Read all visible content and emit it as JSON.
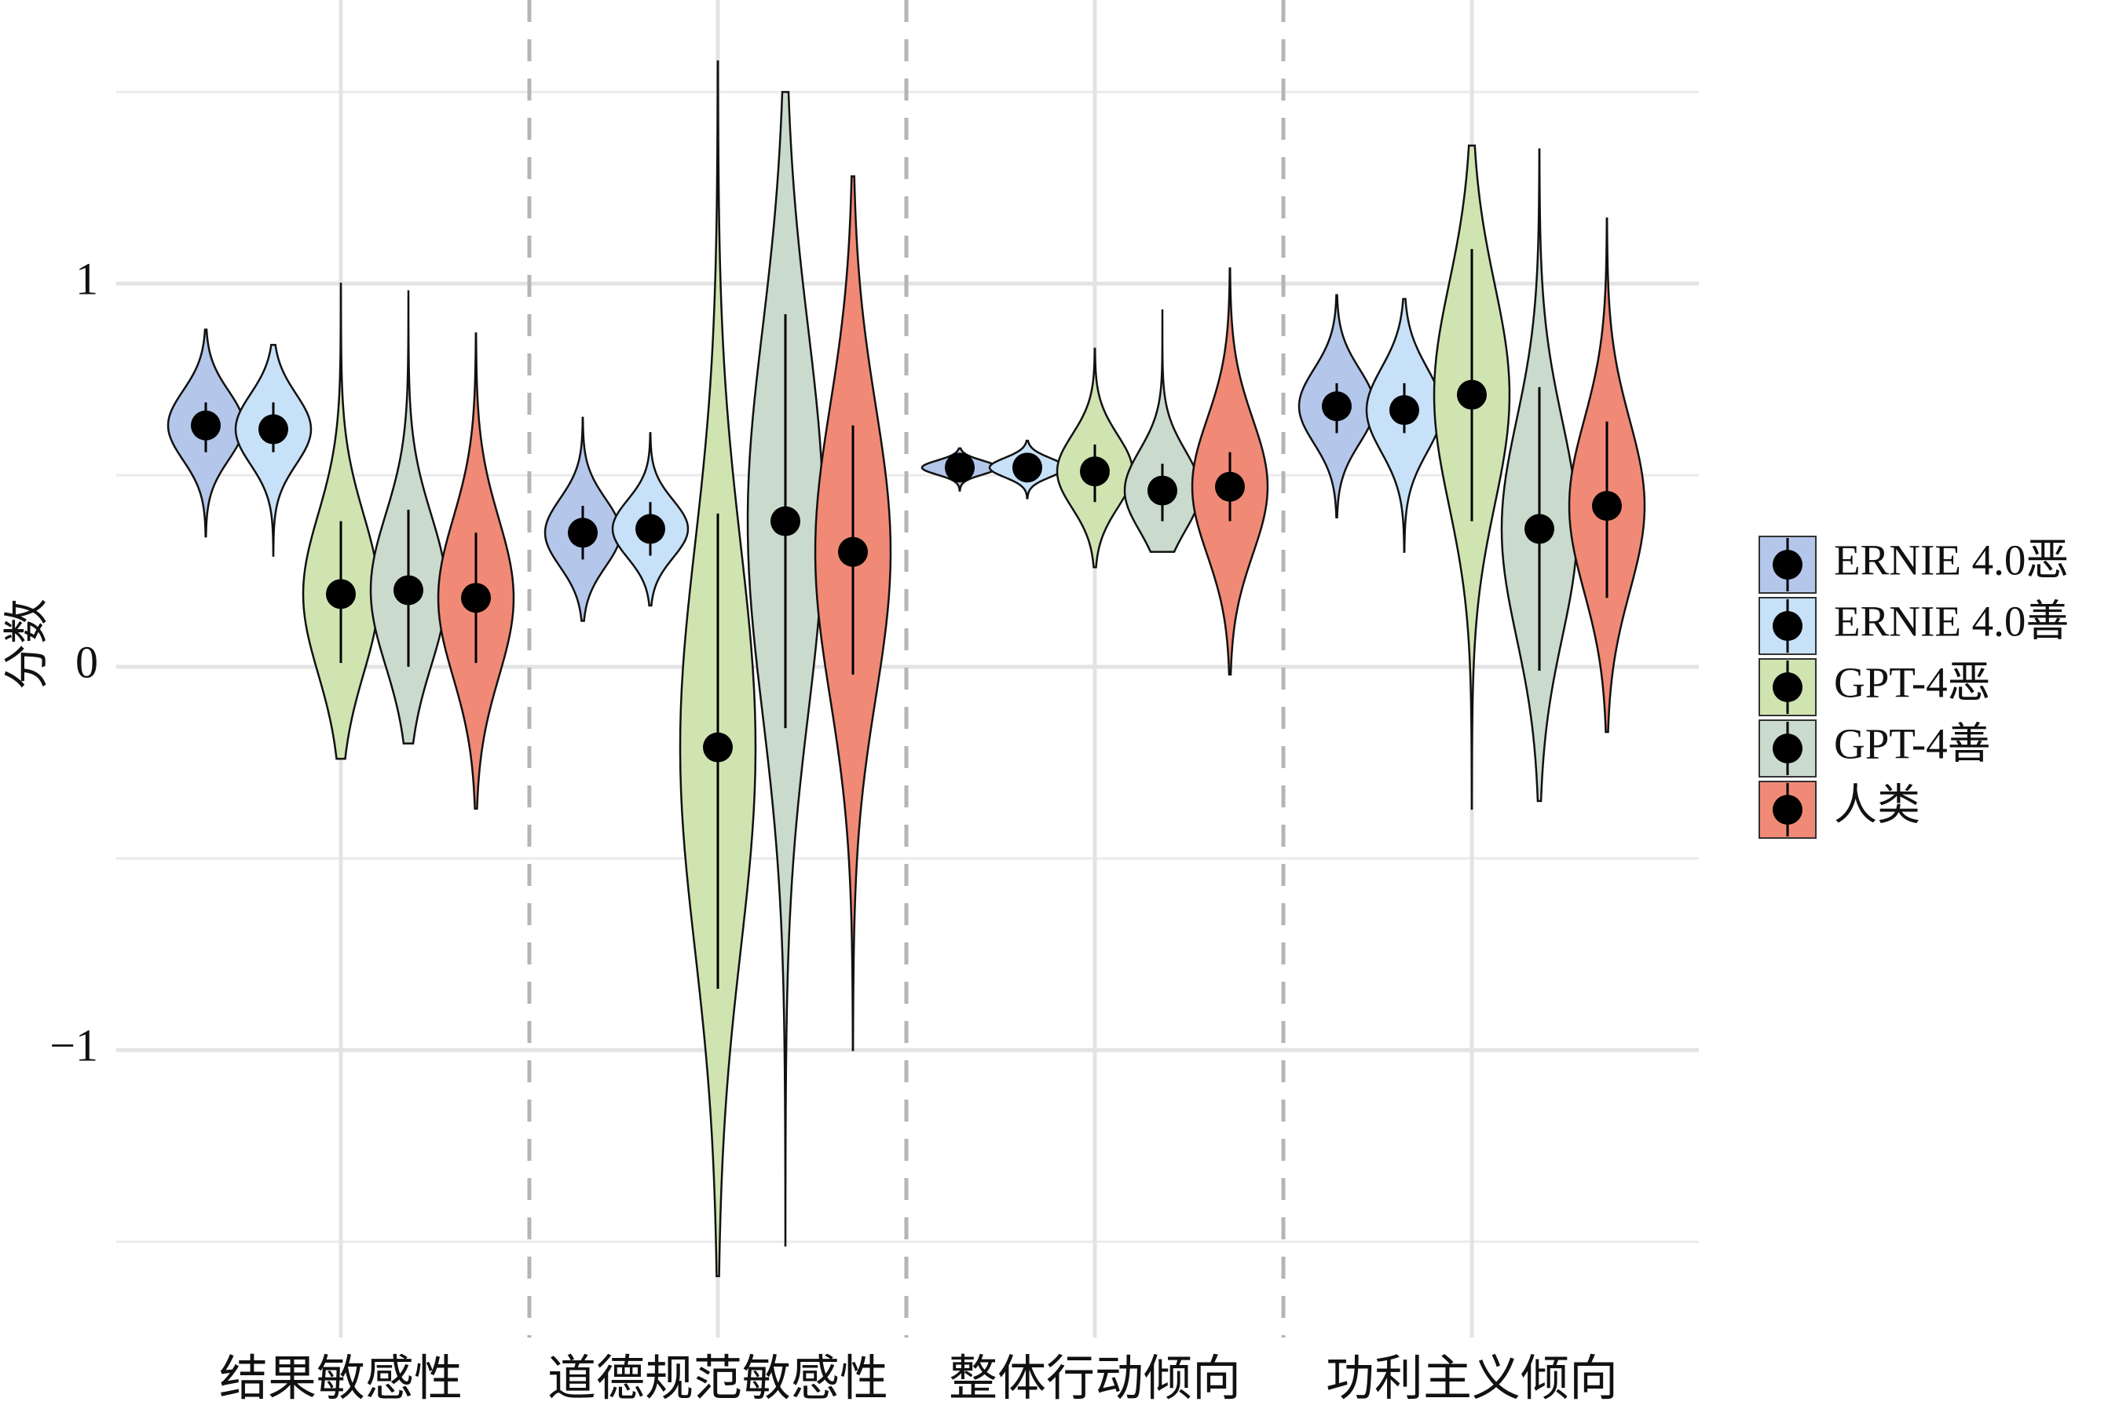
{
  "chart_data": {
    "type": "violin",
    "y_label": "分数",
    "categories": [
      "结果敏感性",
      "道德规范敏感性",
      "整体行动倾向",
      "功利主义倾向"
    ],
    "ylim": [
      -1.75,
      1.74
    ],
    "yticks": [
      {
        "value": -1,
        "label": "−1"
      },
      0,
      1
    ],
    "yminor": [
      -1.5,
      -0.5,
      0.5,
      1.5
    ],
    "grid": true,
    "legend": "right",
    "series": [
      {
        "name": "ERNIE 4.0恶",
        "color": "#b4c6ea",
        "values": [
          0.63,
          0.35,
          0.52,
          0.68
        ],
        "low": [
          0.56,
          0.28,
          0.49,
          0.61
        ],
        "high": [
          0.69,
          0.42,
          0.55,
          0.74
        ],
        "min": [
          0.34,
          0.12,
          0.46,
          0.39
        ],
        "max": [
          0.88,
          0.65,
          0.57,
          0.97
        ]
      },
      {
        "name": "ERNIE 4.0善",
        "color": "#c7e1f8",
        "values": [
          0.62,
          0.36,
          0.52,
          0.67
        ],
        "low": [
          0.56,
          0.29,
          0.49,
          0.61
        ],
        "high": [
          0.69,
          0.43,
          0.55,
          0.74
        ],
        "min": [
          0.29,
          0.16,
          0.44,
          0.3
        ],
        "max": [
          0.84,
          0.61,
          0.59,
          0.96
        ]
      },
      {
        "name": "GPT-4恶",
        "color": "#d0e4b2",
        "values": [
          0.19,
          -0.21,
          0.51,
          0.71
        ],
        "low": [
          0.01,
          -0.84,
          0.43,
          0.38
        ],
        "high": [
          0.38,
          0.4,
          0.58,
          1.09
        ],
        "min": [
          -0.24,
          -1.59,
          0.26,
          -0.37
        ],
        "max": [
          1.0,
          1.58,
          0.83,
          1.36
        ]
      },
      {
        "name": "GPT-4善",
        "color": "#cadacd",
        "values": [
          0.2,
          0.38,
          0.46,
          0.36
        ],
        "low": [
          0,
          -0.16,
          0.38,
          -0.01
        ],
        "high": [
          0.41,
          0.92,
          0.53,
          0.73
        ],
        "min": [
          -0.2,
          -1.51,
          0.3,
          -0.35
        ],
        "max": [
          0.98,
          1.5,
          0.93,
          1.35
        ]
      },
      {
        "name": "人类",
        "color": "#f08a76",
        "values": [
          0.18,
          0.3,
          0.47,
          0.42
        ],
        "low": [
          0.01,
          -0.02,
          0.38,
          0.18
        ],
        "high": [
          0.35,
          0.63,
          0.56,
          0.64
        ],
        "min": [
          -0.37,
          -1.0,
          -0.02,
          -0.17
        ],
        "max": [
          0.87,
          1.28,
          1.04,
          1.17
        ]
      }
    ]
  }
}
